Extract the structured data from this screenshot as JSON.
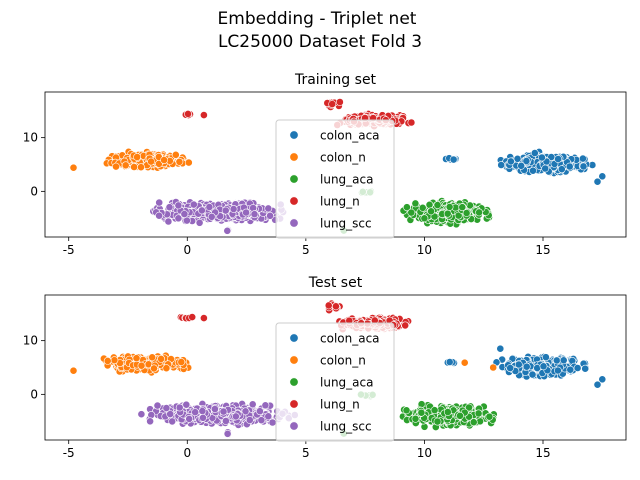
{
  "figure": {
    "title_line1": "Embedding - Triplet net",
    "title_line2": "LC25000  Dataset Fold 3"
  },
  "chart_data": [
    {
      "type": "scatter",
      "title": "Training set",
      "xlabel": "",
      "ylabel": "",
      "xlim": [
        -6.0,
        18.5
      ],
      "ylim": [
        -8.5,
        18.5
      ],
      "xticks": [
        -5,
        0,
        5,
        10,
        15
      ],
      "yticks": [
        0,
        10
      ],
      "grid": false,
      "legend_position": "center",
      "legend": [
        "colon_aca",
        "colon_n",
        "lung_aca",
        "lung_n",
        "lung_scc"
      ],
      "series": [
        {
          "name": "colon_aca",
          "color": "#1f77b4",
          "clusters": [
            {
              "x": [
                12.8,
                17.3
              ],
              "y": [
                3.0,
                7.5
              ],
              "n": 340
            },
            {
              "x": [
                10.8,
                11.5
              ],
              "y": [
                5.8,
                6.2
              ],
              "n": 8
            },
            {
              "x": [
                17.5,
                17.5
              ],
              "y": [
                2.8,
                2.8
              ],
              "n": 1
            },
            {
              "x": [
                17.3,
                17.3
              ],
              "y": [
                1.8,
                1.8
              ],
              "n": 1
            }
          ]
        },
        {
          "name": "colon_n",
          "color": "#ff7f0e",
          "clusters": [
            {
              "x": [
                -3.8,
                0.4
              ],
              "y": [
                4.0,
                7.6
              ],
              "n": 320
            },
            {
              "x": [
                -4.8,
                -4.8
              ],
              "y": [
                4.4,
                4.4
              ],
              "n": 1
            }
          ]
        },
        {
          "name": "lung_aca",
          "color": "#2ca02c",
          "clusters": [
            {
              "x": [
                8.8,
                13.2
              ],
              "y": [
                -6.5,
                -1.5
              ],
              "n": 320
            },
            {
              "x": [
                7.0,
                8.2
              ],
              "y": [
                -0.5,
                0.2
              ],
              "n": 6
            },
            {
              "x": [
                6.6,
                6.6
              ],
              "y": [
                -7.3,
                -7.3
              ],
              "n": 1
            }
          ]
        },
        {
          "name": "lung_n",
          "color": "#d62728",
          "clusters": [
            {
              "x": [
                6.0,
                9.8
              ],
              "y": [
                12.0,
                14.5
              ],
              "n": 280
            },
            {
              "x": [
                5.7,
                6.6
              ],
              "y": [
                15.5,
                17.0
              ],
              "n": 14
            },
            {
              "x": [
                -0.4,
                0.3
              ],
              "y": [
                14.0,
                14.5
              ],
              "n": 6
            },
            {
              "x": [
                0.7,
                0.7
              ],
              "y": [
                14.2,
                14.2
              ],
              "n": 1
            }
          ]
        },
        {
          "name": "lung_scc",
          "color": "#9467bd",
          "clusters": [
            {
              "x": [
                -2.2,
                4.8
              ],
              "y": [
                -6.0,
                -1.5
              ],
              "n": 520
            },
            {
              "x": [
                1.6,
                1.8
              ],
              "y": [
                -7.5,
                -7.0
              ],
              "n": 3
            }
          ]
        }
      ]
    },
    {
      "type": "scatter",
      "title": "Test set",
      "xlabel": "",
      "ylabel": "",
      "xlim": [
        -6.0,
        18.5
      ],
      "ylim": [
        -8.5,
        18.5
      ],
      "xticks": [
        -5,
        0,
        5,
        10,
        15
      ],
      "yticks": [
        0,
        10
      ],
      "grid": false,
      "legend_position": "center",
      "legend": [
        "colon_aca",
        "colon_n",
        "lung_aca",
        "lung_n",
        "lung_scc"
      ],
      "series": [
        {
          "name": "colon_aca",
          "color": "#1f77b4",
          "clusters": [
            {
              "x": [
                12.8,
                17.3
              ],
              "y": [
                3.0,
                7.5
              ],
              "n": 340
            },
            {
              "x": [
                10.8,
                11.5
              ],
              "y": [
                5.8,
                6.2
              ],
              "n": 8
            },
            {
              "x": [
                13.2,
                13.2
              ],
              "y": [
                8.5,
                8.5
              ],
              "n": 1
            },
            {
              "x": [
                17.5,
                17.5
              ],
              "y": [
                2.8,
                2.8
              ],
              "n": 1
            },
            {
              "x": [
                17.3,
                17.3
              ],
              "y": [
                1.8,
                1.8
              ],
              "n": 1
            }
          ]
        },
        {
          "name": "colon_n",
          "color": "#ff7f0e",
          "clusters": [
            {
              "x": [
                -3.8,
                0.4
              ],
              "y": [
                4.0,
                7.6
              ],
              "n": 320
            },
            {
              "x": [
                -4.8,
                -4.8
              ],
              "y": [
                4.4,
                4.4
              ],
              "n": 1
            },
            {
              "x": [
                11.7,
                11.7
              ],
              "y": [
                5.9,
                5.9
              ],
              "n": 1
            },
            {
              "x": [
                12.9,
                12.9
              ],
              "y": [
                5.0,
                5.0
              ],
              "n": 1
            }
          ]
        },
        {
          "name": "lung_aca",
          "color": "#2ca02c",
          "clusters": [
            {
              "x": [
                8.8,
                13.2
              ],
              "y": [
                -6.5,
                -1.5
              ],
              "n": 320
            },
            {
              "x": [
                7.0,
                8.2
              ],
              "y": [
                -0.5,
                0.2
              ],
              "n": 6
            },
            {
              "x": [
                6.6,
                6.6
              ],
              "y": [
                -7.3,
                -7.3
              ],
              "n": 1
            }
          ]
        },
        {
          "name": "lung_n",
          "color": "#d62728",
          "clusters": [
            {
              "x": [
                6.0,
                9.8
              ],
              "y": [
                12.0,
                14.5
              ],
              "n": 280
            },
            {
              "x": [
                5.7,
                6.6
              ],
              "y": [
                15.5,
                17.0
              ],
              "n": 14
            },
            {
              "x": [
                -0.4,
                0.3
              ],
              "y": [
                14.0,
                14.5
              ],
              "n": 6
            },
            {
              "x": [
                0.7,
                0.7
              ],
              "y": [
                14.2,
                14.2
              ],
              "n": 1
            }
          ]
        },
        {
          "name": "lung_scc",
          "color": "#9467bd",
          "clusters": [
            {
              "x": [
                -2.2,
                4.8
              ],
              "y": [
                -6.0,
                -1.5
              ],
              "n": 520
            },
            {
              "x": [
                1.6,
                1.8
              ],
              "y": [
                -7.5,
                -7.0
              ],
              "n": 3
            }
          ]
        }
      ]
    }
  ]
}
